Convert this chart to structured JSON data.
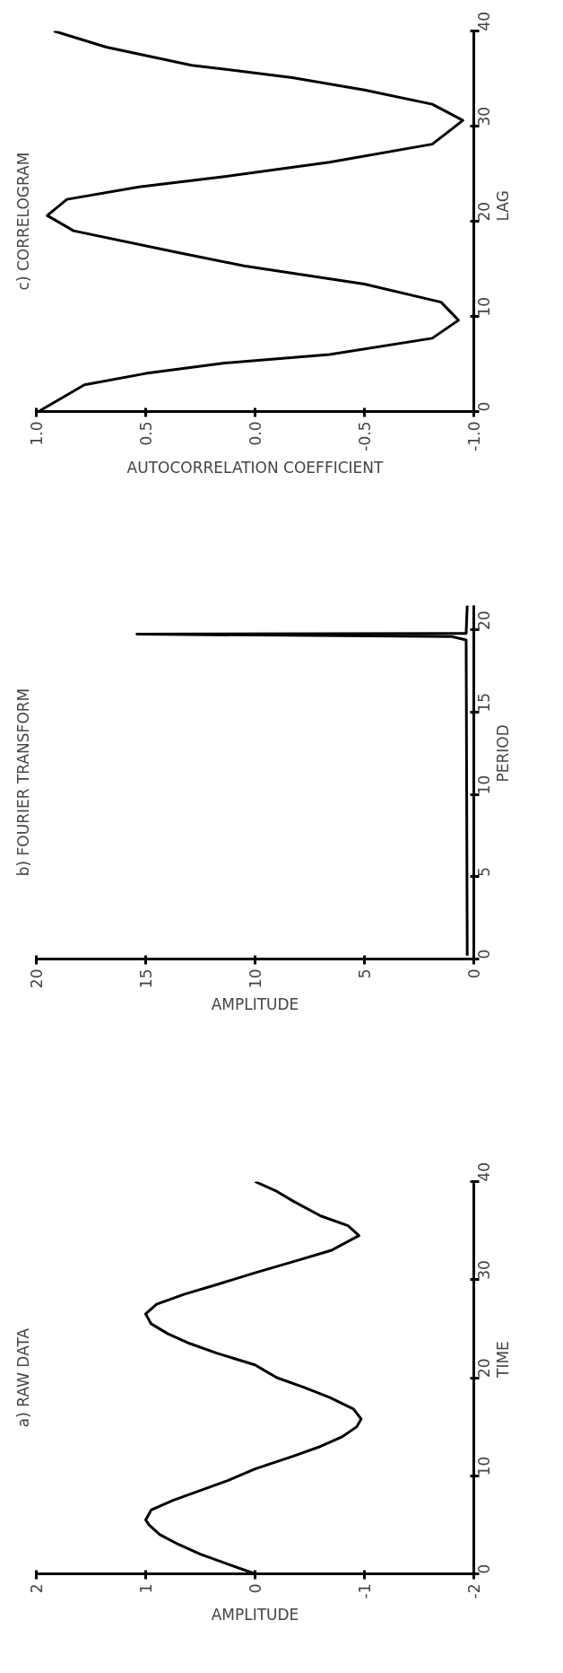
{
  "chart_data": [
    {
      "type": "line",
      "title": "a) RAW DATA",
      "xlabel": "AMPLITUDE",
      "ylabel": "TIME",
      "xlim": [
        2,
        -2
      ],
      "ylim": [
        0,
        40
      ],
      "xticks": [
        2,
        1,
        0,
        -1,
        -2
      ],
      "yticks": [
        0,
        10,
        20,
        30,
        40
      ],
      "grid": false,
      "marker": "none",
      "line_style": "solid",
      "series": [
        {
          "color": "#000000",
          "x": [
            0,
            0.25,
            0.5,
            0.7,
            0.87,
            0.97,
            1.0,
            0.95,
            0.75,
            0.5,
            0.25,
            0,
            -0.35,
            -0.6,
            -0.8,
            -0.93,
            -0.97,
            -0.9,
            -0.68,
            -0.45,
            -0.2,
            0,
            0.35,
            0.6,
            0.8,
            0.95,
            1.0,
            0.9,
            0.65,
            0.35,
            0,
            -0.4,
            -0.7,
            -0.95,
            -0.85,
            -0.6,
            -0.35,
            -0.2,
            0
          ],
          "values": [
            0,
            1,
            2,
            3,
            4,
            5,
            5.5,
            6.5,
            7.5,
            8.5,
            9.5,
            10.7,
            12,
            13,
            14,
            15,
            15.8,
            16.8,
            18,
            19,
            20,
            21.3,
            22.5,
            23.5,
            24.5,
            25.5,
            26.5,
            27.5,
            28.5,
            29.5,
            30.7,
            32,
            33,
            34.5,
            35.5,
            36.5,
            38,
            39,
            40
          ]
        }
      ]
    },
    {
      "type": "line",
      "title": "b) FOURIER TRANSFORM",
      "xlabel": "AMPLITUDE",
      "ylabel": "PERIOD",
      "xlim": [
        20,
        0
      ],
      "ylim": [
        0,
        21.5
      ],
      "xticks": [
        20,
        15,
        10,
        5,
        0
      ],
      "yticks": [
        0,
        5,
        10,
        15,
        20
      ],
      "grid": false,
      "marker": "none",
      "line_style": "solid",
      "series": [
        {
          "color": "#000000",
          "x": [
            0.3,
            0.35,
            1.0,
            15.4,
            0.35,
            0.3
          ],
          "values": [
            0.2,
            19.4,
            19.6,
            19.75,
            19.8,
            21.5
          ]
        }
      ]
    },
    {
      "type": "line",
      "title": "c) CORRELOGRAM",
      "xlabel": "AUTOCORRELATION COEFFICIENT",
      "ylabel": "LAG",
      "xlim": [
        1,
        -1
      ],
      "ylim": [
        0,
        40
      ],
      "xticks": [
        {
          "value": 1,
          "label": "1.0"
        },
        0.5,
        {
          "value": 0,
          "label": "0.0"
        },
        -0.5,
        {
          "value": -1,
          "label": "-1.0"
        }
      ],
      "yticks": [
        0,
        10,
        20,
        30,
        40
      ],
      "grid": false,
      "marker": "none",
      "line_style": "solid",
      "series": [
        {
          "color": "#000000",
          "x": [
            0.99,
            0.78,
            0.5,
            0.14,
            -0.34,
            -0.81,
            -0.93,
            -0.85,
            -0.5,
            0.05,
            0.37,
            0.83,
            0.95,
            0.86,
            0.53,
            0.14,
            -0.34,
            -0.81,
            -0.95,
            -0.81,
            -0.5,
            -0.17,
            0.29,
            0.68,
            0.92
          ],
          "values": [
            0,
            2.8,
            4,
            5.1,
            6,
            7.7,
            9.6,
            11.5,
            13.4,
            15.3,
            16.8,
            19,
            20.6,
            22.3,
            23.6,
            24.7,
            26.2,
            28.1,
            30.6,
            32.3,
            33.8,
            35.1,
            36.4,
            38.3,
            40
          ]
        }
      ]
    }
  ]
}
